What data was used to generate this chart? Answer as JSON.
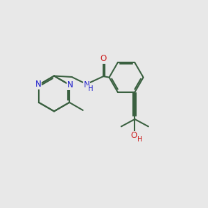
{
  "bg_color": "#e8e8e8",
  "bond_color": "#3a6040",
  "N_color": "#2020cc",
  "O_color": "#cc2020",
  "lw": 1.5,
  "fs": 8.5,
  "xlim": [
    0,
    10
  ],
  "ylim": [
    0,
    10
  ]
}
